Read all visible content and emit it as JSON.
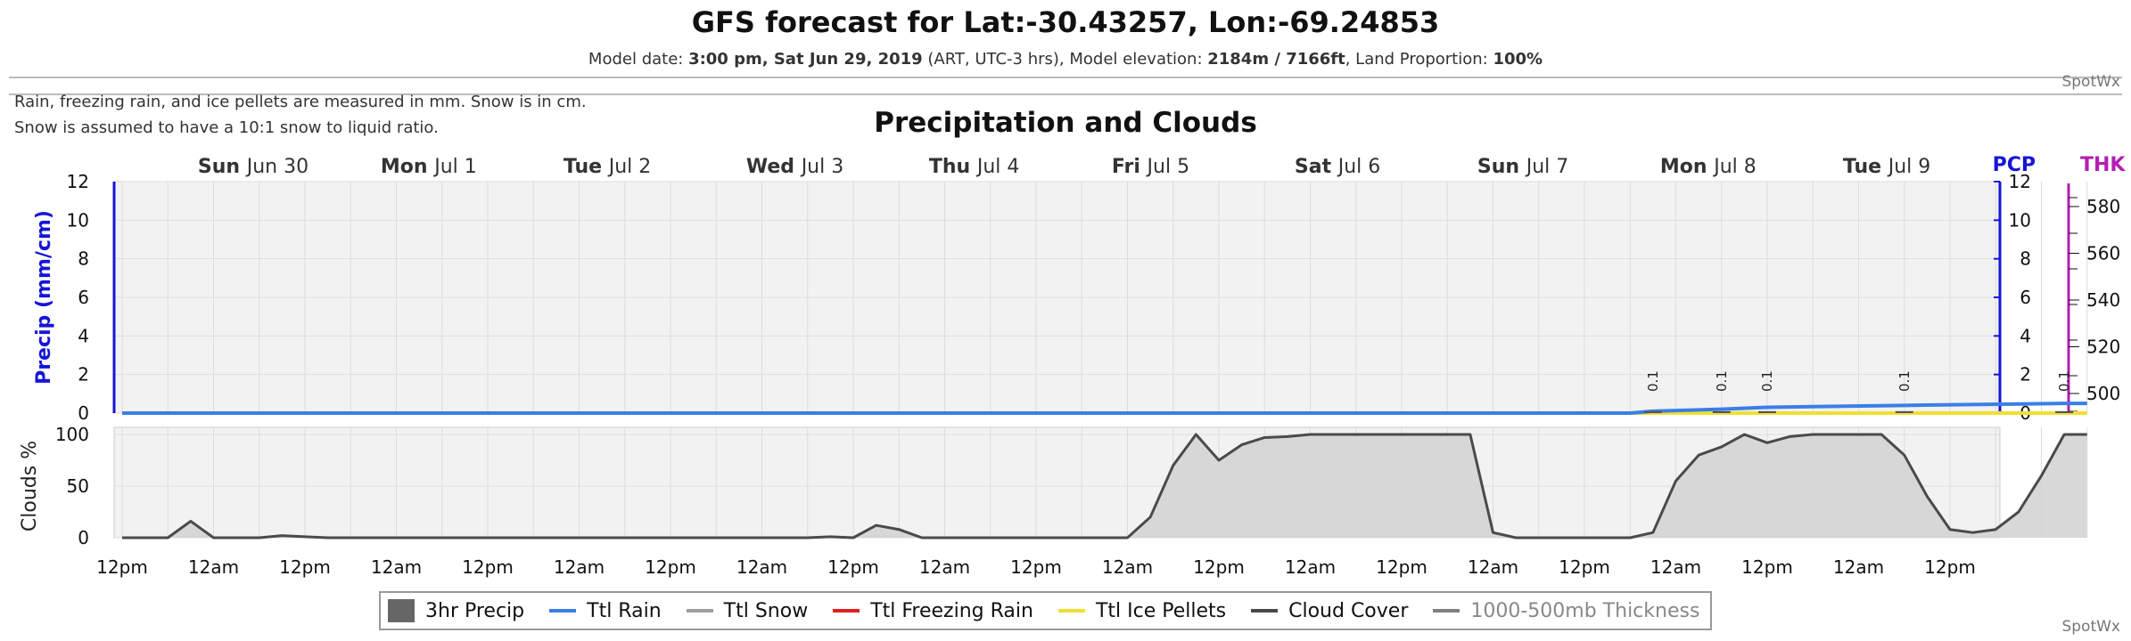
{
  "header": {
    "title": "GFS forecast for Lat:-30.43257, Lon:-69.24853",
    "subtitle_prefix": "Model date: ",
    "model_date": "3:00 pm, Sat Jun 29, 2019",
    "subtitle_mid": " (ART, UTC-3 hrs), Model elevation: ",
    "elevation": "2184m / 7166ft",
    "subtitle_mid2": ", Land Proportion: ",
    "land_proportion": "100%",
    "brand": "SpotWx"
  },
  "notes": {
    "line1": "Rain, freezing rain, and ice pellets are measured in mm. Snow is in cm.",
    "line2": "Snow is assumed to have a 10:1 snow to liquid ratio."
  },
  "footer_brand": "SpotWx",
  "colors": {
    "precip_axis": "#1515d8",
    "thickness_axis": "#b21fb2",
    "rain": "#3b7ee8",
    "snow": "#9e9e9e",
    "freezing_rain": "#e02020",
    "ice_pellets": "#f0e030",
    "cloud_line": "#4a4a4a",
    "cloud_fill": "#d4d4d4",
    "thick_line": "#808080"
  },
  "chart_data": {
    "type": "line",
    "title": "Precipitation and Clouds",
    "day_labels": [
      {
        "weekday": "Sun",
        "date": "Jun 30"
      },
      {
        "weekday": "Mon",
        "date": "Jul 1"
      },
      {
        "weekday": "Tue",
        "date": "Jul 2"
      },
      {
        "weekday": "Wed",
        "date": "Jul 3"
      },
      {
        "weekday": "Thu",
        "date": "Jul 4"
      },
      {
        "weekday": "Fri",
        "date": "Jul 5"
      },
      {
        "weekday": "Sat",
        "date": "Jul 6"
      },
      {
        "weekday": "Sun",
        "date": "Jul 7"
      },
      {
        "weekday": "Mon",
        "date": "Jul 8"
      },
      {
        "weekday": "Tue",
        "date": "Jul 9"
      }
    ],
    "x_tick_labels": [
      "12pm",
      "12am",
      "12pm",
      "12am",
      "12pm",
      "12am",
      "12pm",
      "12am",
      "12pm",
      "12am",
      "12pm",
      "12am",
      "12pm",
      "12am",
      "12pm",
      "12am",
      "12pm",
      "12am",
      "12pm",
      "12am",
      "12pm"
    ],
    "precip_panel": {
      "ylabel": "Precip (mm/cm)",
      "ylim": [
        0,
        12
      ],
      "yticks": [
        0,
        2,
        4,
        6,
        8,
        10,
        12
      ],
      "right_label": "PCP",
      "thickness_label": "THK",
      "thickness_ticks": [
        500,
        520,
        540,
        560,
        580
      ],
      "precip_bars": {
        "hours": [
          201,
          210,
          216,
          234,
          255
        ],
        "values": [
          0.1,
          0.1,
          0.1,
          0.1,
          0.1
        ],
        "labels": [
          "0.1",
          "0.1",
          "0.1",
          "0.1",
          "0.1"
        ]
      },
      "total_rain": {
        "hours": [
          0,
          198,
          201,
          210,
          216,
          234,
          255,
          258
        ],
        "values": [
          0,
          0,
          0.1,
          0.2,
          0.3,
          0.4,
          0.5,
          0.5
        ]
      },
      "total_ice_pellets": {
        "hours": [
          0,
          258
        ],
        "values": [
          0,
          0
        ]
      }
    },
    "cloud_panel": {
      "ylabel": "Clouds %",
      "ylim": [
        0,
        100
      ],
      "yticks": [
        0,
        50,
        100
      ],
      "series": {
        "name": "Cloud Cover",
        "hours": [
          0,
          6,
          9,
          12,
          15,
          18,
          21,
          24,
          27,
          30,
          33,
          36,
          39,
          42,
          45,
          48,
          51,
          54,
          57,
          60,
          63,
          66,
          69,
          72,
          75,
          78,
          81,
          84,
          87,
          90,
          93,
          96,
          99,
          102,
          105,
          108,
          111,
          114,
          117,
          120,
          123,
          126,
          129,
          132,
          135,
          138,
          141,
          144,
          147,
          150,
          153,
          156,
          159,
          162,
          165,
          168,
          171,
          174,
          177,
          180,
          183,
          186,
          189,
          192,
          195,
          198,
          201,
          204,
          207,
          210,
          213,
          216,
          219,
          222,
          225,
          228,
          231,
          234,
          237,
          240,
          243,
          246,
          249,
          252,
          255,
          258
        ],
        "values": [
          0,
          0,
          16,
          0,
          0,
          0,
          2,
          1,
          0,
          0,
          0,
          0,
          0,
          0,
          0,
          0,
          0,
          0,
          0,
          0,
          0,
          0,
          0,
          0,
          0,
          0,
          0,
          0,
          0,
          0,
          1,
          0,
          12,
          8,
          0,
          0,
          0,
          0,
          0,
          0,
          0,
          0,
          0,
          0,
          20,
          70,
          100,
          75,
          90,
          97,
          98,
          100,
          100,
          100,
          100,
          100,
          100,
          100,
          100,
          5,
          0,
          0,
          0,
          0,
          0,
          0,
          5,
          55,
          80,
          88,
          100,
          92,
          98,
          100,
          100,
          100,
          100,
          80,
          40,
          8,
          5,
          8,
          25,
          60,
          100,
          100
        ]
      }
    },
    "legend": [
      "3hr Precip",
      "Ttl Rain",
      "Ttl Snow",
      "Ttl Freezing Rain",
      "Ttl Ice Pellets",
      "Cloud Cover",
      "1000-500mb Thickness"
    ]
  }
}
